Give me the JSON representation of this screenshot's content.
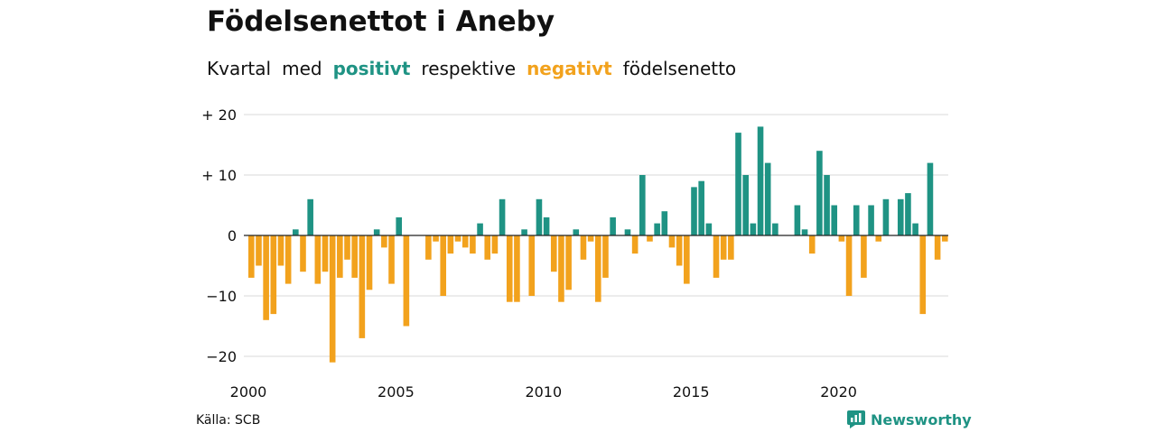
{
  "header": {
    "title": "Födelsenettot i Aneby",
    "subtitle": {
      "w1": "Kvartal",
      "w2": "med",
      "positive": "positivt",
      "w3": "respektive",
      "negative": "negativt",
      "w4": "födelsenetto"
    }
  },
  "footer": {
    "source": "Källa: SCB",
    "brand": "Newsworthy"
  },
  "colors": {
    "positive": "#1f9384",
    "negative": "#f2a21d",
    "grid": "#d9d9d9",
    "zero_line": "#222222"
  },
  "chart_data": {
    "type": "bar",
    "title": "Födelsenettot i Aneby",
    "subtitle": "Kvartal med positivt respektive negativt födelsenetto",
    "xlabel": "",
    "ylabel": "",
    "ylim": [
      -22,
      21
    ],
    "yticks": [
      {
        "value": 20,
        "label": "+ 20"
      },
      {
        "value": 10,
        "label": "+ 10"
      },
      {
        "value": 0,
        "label": "0"
      },
      {
        "value": -10,
        "label": "−10"
      },
      {
        "value": -20,
        "label": "−20"
      }
    ],
    "xticks": [
      {
        "year": 2000,
        "label": "2000"
      },
      {
        "year": 2005,
        "label": "2005"
      },
      {
        "year": 2010,
        "label": "2010"
      },
      {
        "year": 2015,
        "label": "2015"
      },
      {
        "year": 2020,
        "label": "2020"
      }
    ],
    "start_year": 2000,
    "start_quarter": 1,
    "grid": true,
    "values": [
      -7,
      -5,
      -14,
      -13,
      -5,
      -8,
      1,
      -6,
      6,
      -8,
      -6,
      -21,
      -7,
      -4,
      -7,
      -17,
      -9,
      1,
      -2,
      -8,
      3,
      -15,
      0,
      0,
      -4,
      -1,
      -10,
      -3,
      -1,
      -2,
      -3,
      2,
      -4,
      -3,
      6,
      -11,
      -11,
      1,
      -10,
      6,
      3,
      -6,
      -11,
      -9,
      1,
      -4,
      -1,
      -11,
      -7,
      3,
      0,
      1,
      -3,
      10,
      -1,
      2,
      4,
      -2,
      -5,
      -8,
      8,
      9,
      2,
      -7,
      -4,
      -4,
      17,
      10,
      2,
      18,
      12,
      2,
      0,
      0,
      5,
      1,
      -3,
      14,
      10,
      5,
      -1,
      -10,
      5,
      -7,
      5,
      -1,
      6,
      0,
      6,
      7,
      2,
      -13,
      12,
      -4,
      -1
    ]
  }
}
